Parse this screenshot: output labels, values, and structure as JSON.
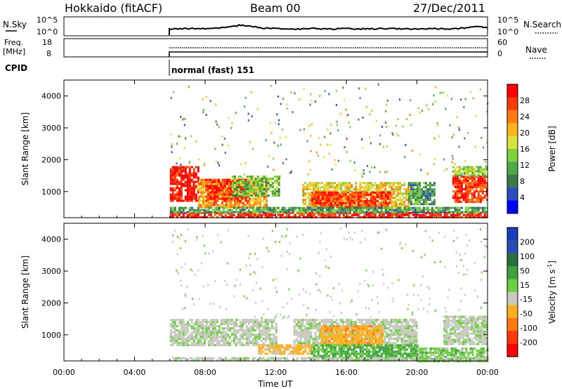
{
  "header": {
    "station": "Hokkaido (fitACF)",
    "beam": "Beam 00",
    "date": "27/Dec/2011"
  },
  "strip_noise": {
    "left_label": "N.Sky",
    "right_label": "N.Search",
    "left_ticks": [
      "10^5",
      "10^0"
    ],
    "right_ticks": [
      "10^5",
      "10^0"
    ]
  },
  "strip_freq": {
    "left_label_1": "Freq.",
    "left_label_2": "[MHz]",
    "right_label": "Nave",
    "left_ticks": [
      "18",
      "8"
    ],
    "right_ticks": [
      "60",
      "0"
    ]
  },
  "cpid": {
    "label": "CPID",
    "mode": "normal (fast) 151"
  },
  "colors": {
    "power_scale": [
      "#0000ff",
      "#2a4cc0",
      "#3b7a4a",
      "#4ea94c",
      "#7fd33a",
      "#d7e23c",
      "#ffb21c",
      "#ff7a10",
      "#ff3a0a",
      "#ff0000"
    ],
    "velocity_scale": [
      "#1a3db8",
      "#2b4bb5",
      "#26703a",
      "#3ea13f",
      "#6cd040",
      "#c8c8c0",
      "#ffb020",
      "#ff7a10",
      "#ff3a0a",
      "#ff0000"
    ]
  },
  "chart_data": [
    {
      "type": "heatmap",
      "panel": "power",
      "ylabel": "Slant Range [km]",
      "xlim_hours": [
        0,
        24
      ],
      "ylim": [
        180,
        4500
      ],
      "y_ticks": [
        "1000",
        "2000",
        "3000",
        "4000"
      ],
      "colorbar": {
        "label": "Power [dB]",
        "ticks": [
          "28",
          "24",
          "20",
          "16",
          "12",
          "8",
          "4"
        ],
        "range": [
          0,
          30
        ]
      },
      "regions": [
        {
          "t0": 6.0,
          "t1": 7.6,
          "r0": 700,
          "r1": 1800,
          "level": 28
        },
        {
          "t0": 7.6,
          "t1": 11.5,
          "r0": 500,
          "r1": 1400,
          "level": 20
        },
        {
          "t0": 8.0,
          "t1": 10.5,
          "r0": 700,
          "r1": 1400,
          "level": 26
        },
        {
          "t0": 9.5,
          "t1": 12.2,
          "r0": 900,
          "r1": 1500,
          "level": 12
        },
        {
          "t0": 13.5,
          "t1": 19.5,
          "r0": 500,
          "r1": 1300,
          "level": 18
        },
        {
          "t0": 14.0,
          "t1": 18.5,
          "r0": 500,
          "r1": 1000,
          "level": 26
        },
        {
          "t0": 19.5,
          "t1": 21.0,
          "r0": 600,
          "r1": 1300,
          "level": 10
        },
        {
          "t0": 22.0,
          "t1": 24.0,
          "r0": 700,
          "r1": 1500,
          "level": 26
        },
        {
          "t0": 22.0,
          "t1": 24.0,
          "r0": 1500,
          "r1": 1800,
          "level": 14
        },
        {
          "t0": 6.0,
          "t1": 24.0,
          "r0": 180,
          "r1": 360,
          "level": 27
        },
        {
          "t0": 6.0,
          "t1": 24.0,
          "r0": 360,
          "r1": 520,
          "level": 10
        }
      ]
    },
    {
      "type": "heatmap",
      "panel": "velocity",
      "xlabel": "Time UT",
      "ylabel": "Slant Range [km]",
      "xlim_hours": [
        0,
        24
      ],
      "ylim": [
        180,
        4500
      ],
      "x_ticks": [
        "00:00",
        "04:00",
        "08:00",
        "12:00",
        "16:00",
        "20:00",
        "00:00"
      ],
      "y_ticks": [
        "1000",
        "2000",
        "3000",
        "4000"
      ],
      "colorbar": {
        "label": "Velocity [m s",
        "label_sup": "-1",
        "label_end": "]",
        "ticks": [
          "200",
          "100",
          "50",
          "15",
          "-15",
          "-50",
          "-100",
          "-200"
        ],
        "range": [
          -250,
          250
        ]
      },
      "regions": [
        {
          "t0": 6.0,
          "t1": 12.0,
          "r0": 700,
          "r1": 1500,
          "level": 0
        },
        {
          "t0": 13.0,
          "t1": 20.0,
          "r0": 700,
          "r1": 1500,
          "level": 0
        },
        {
          "t0": 21.5,
          "t1": 24.0,
          "r0": 700,
          "r1": 1600,
          "level": 0
        },
        {
          "t0": 14.5,
          "t1": 18.0,
          "r0": 700,
          "r1": 1300,
          "level": -80
        },
        {
          "t0": 11.0,
          "t1": 14.0,
          "r0": 400,
          "r1": 700,
          "level": -60
        },
        {
          "t0": 14.0,
          "t1": 20.0,
          "r0": 200,
          "r1": 700,
          "level": 60
        },
        {
          "t0": 20.0,
          "t1": 24.0,
          "r0": 200,
          "r1": 600,
          "level": 30
        },
        {
          "t0": 6.0,
          "t1": 24.0,
          "r0": 180,
          "r1": 300,
          "level": 0
        }
      ]
    }
  ]
}
